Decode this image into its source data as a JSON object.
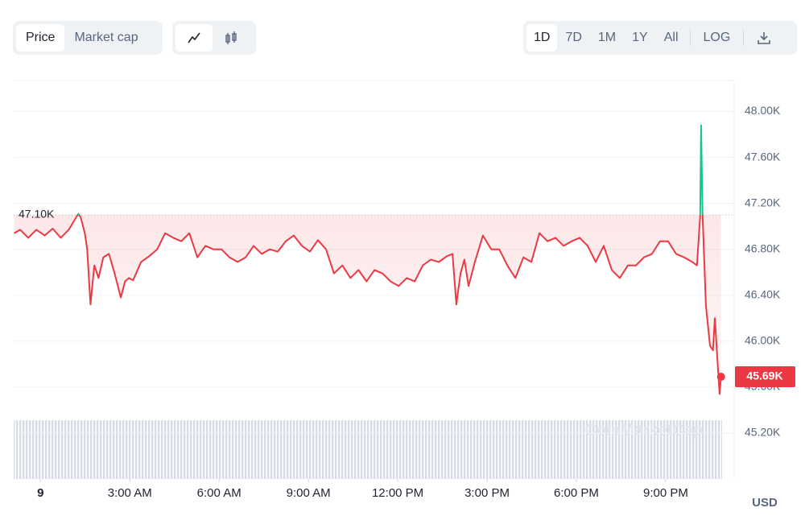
{
  "tabs": [
    "Price",
    "Market cap"
  ],
  "ranges": [
    "1D",
    "7D",
    "1M",
    "1Y",
    "All"
  ],
  "log_button": "LOG",
  "chart_data": {
    "type": "line",
    "x": [
      -0.89,
      -0.68,
      -0.41,
      -0.14,
      0.14,
      0.41,
      0.68,
      0.95,
      1.27,
      1.35,
      1.49,
      1.57,
      1.68,
      1.81,
      1.95,
      2.11,
      2.3,
      2.49,
      2.7,
      2.84,
      2.97,
      3.11,
      3.38,
      3.65,
      3.92,
      4.19,
      4.46,
      4.73,
      5.0,
      5.27,
      5.54,
      5.81,
      6.08,
      6.35,
      6.62,
      6.89,
      7.16,
      7.43,
      7.7,
      7.97,
      8.24,
      8.51,
      8.78,
      9.05,
      9.32,
      9.59,
      9.86,
      10.14,
      10.41,
      10.68,
      10.95,
      11.22,
      11.49,
      11.76,
      12.03,
      12.3,
      12.57,
      12.84,
      13.11,
      13.38,
      13.65,
      13.84,
      13.97,
      14.11,
      14.24,
      14.38,
      14.59,
      14.86,
      15.14,
      15.41,
      15.68,
      15.95,
      16.22,
      16.49,
      16.76,
      17.03,
      17.3,
      17.57,
      17.84,
      18.11,
      18.38,
      18.65,
      18.92,
      19.19,
      19.46,
      19.73,
      20.0,
      20.27,
      20.54,
      20.81,
      21.08,
      21.35,
      21.62,
      21.89,
      22.05,
      22.16,
      22.19,
      22.24,
      22.35,
      22.49,
      22.59,
      22.65,
      22.76,
      22.81,
      22.86
    ],
    "series": [
      {
        "name": "Price",
        "up_color": "#16c784",
        "down_color": "#ea3943",
        "values": [
          46940,
          46970,
          46900,
          46970,
          46920,
          46980,
          46900,
          46970,
          47110,
          47080,
          46940,
          46800,
          46320,
          46660,
          46550,
          46730,
          46760,
          46590,
          46380,
          46520,
          46550,
          46530,
          46690,
          46740,
          46800,
          46940,
          46900,
          46870,
          46940,
          46730,
          46830,
          46800,
          46800,
          46730,
          46690,
          46730,
          46830,
          46760,
          46800,
          46780,
          46870,
          46920,
          46830,
          46780,
          46880,
          46800,
          46590,
          46660,
          46550,
          46620,
          46520,
          46620,
          46590,
          46520,
          46480,
          46550,
          46520,
          46660,
          46710,
          46690,
          46740,
          46760,
          46320,
          46590,
          46710,
          46480,
          46690,
          46920,
          46800,
          46800,
          46660,
          46550,
          46730,
          46690,
          46940,
          46870,
          46900,
          46830,
          46870,
          46900,
          46830,
          46690,
          46830,
          46620,
          46550,
          46660,
          46660,
          46730,
          46760,
          46870,
          46870,
          46760,
          46730,
          46690,
          46660,
          47090,
          47880,
          47090,
          46310,
          45960,
          45920,
          46200,
          45750,
          45540,
          45690
        ]
      }
    ],
    "open_price": {
      "value": 47100,
      "label": "47.10K"
    },
    "last_price": {
      "value": 45690,
      "label": "45.69K"
    },
    "xlim": [
      -0.9,
      23.3
    ],
    "xticks": [
      {
        "value": 0,
        "label": "9"
      },
      {
        "value": 3,
        "label": "3:00 AM"
      },
      {
        "value": 6,
        "label": "6:00 AM"
      },
      {
        "value": 9,
        "label": "9:00 AM"
      },
      {
        "value": 12,
        "label": "12:00 PM"
      },
      {
        "value": 15,
        "label": "3:00 PM"
      },
      {
        "value": 18,
        "label": "6:00 PM"
      },
      {
        "value": 21,
        "label": "9:00 PM"
      }
    ],
    "ylim": [
      44800,
      48270
    ],
    "yticks": [
      {
        "value": 45200,
        "label": "45.20K"
      },
      {
        "value": 45600,
        "label": "45.60K"
      },
      {
        "value": 46000,
        "label": "46.00K"
      },
      {
        "value": 46400,
        "label": "46.40K"
      },
      {
        "value": 46800,
        "label": "46.80K"
      },
      {
        "value": 47200,
        "label": "47.20K"
      },
      {
        "value": 47600,
        "label": "47.60K"
      },
      {
        "value": 48000,
        "label": "48.00K"
      }
    ],
    "y_unit": "USD",
    "watermark": "CoinMarketCap",
    "grid": true
  }
}
